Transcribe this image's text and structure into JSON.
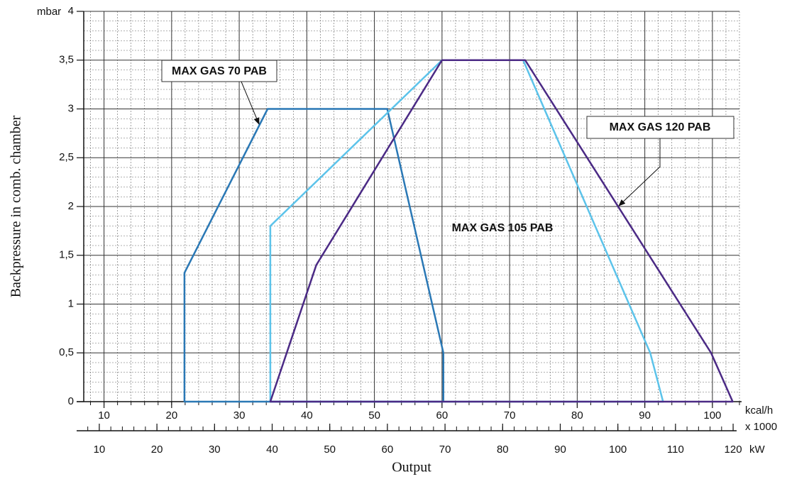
{
  "chart_data": {
    "type": "line",
    "y_label": "Backpressure in comb. chamber",
    "y_unit": "mbar",
    "x_label": "Output",
    "x_unit": "kcal/h",
    "x_unit_note": "x 1000",
    "x2_unit": "kW",
    "xlim": [
      7,
      104
    ],
    "xticks": [
      10,
      20,
      30,
      40,
      50,
      60,
      70,
      80,
      90,
      100
    ],
    "x2lim": [
      7.3,
      121.1
    ],
    "x2ticks": [
      10,
      20,
      30,
      40,
      50,
      60,
      70,
      80,
      90,
      100,
      110,
      120
    ],
    "ylim": [
      0,
      4
    ],
    "yticks": [
      0,
      {
        "value": 0.5,
        "label": "0,5"
      },
      1,
      {
        "value": 1.5,
        "label": "1,5"
      },
      2,
      {
        "value": 2.5,
        "label": "2,5"
      },
      3,
      {
        "value": 3.5,
        "label": "3,5"
      },
      4
    ],
    "grid": true,
    "minor_grid": {
      "x_step": 2,
      "y_step": 0.1,
      "x2_step": 2
    },
    "series": [
      {
        "name": "MAX GAS 70 PAB",
        "color": "#2a78b5",
        "x": [
          21.9,
          21.9,
          34.2,
          51.9,
          60.2,
          60.2
        ],
        "values": [
          0,
          1.32,
          3,
          3,
          0.5,
          0
        ]
      },
      {
        "name": "MAX GAS 105 PAB",
        "color": "#5cc3ea",
        "x": [
          34.6,
          34.6,
          60,
          72,
          90.8,
          92.7
        ],
        "values": [
          0,
          1.8,
          3.5,
          3.5,
          0.5,
          0
        ]
      },
      {
        "name": "MAX GAS 120 PAB",
        "color": "#4b2a85",
        "x": [
          34.6,
          41.4,
          60,
          72.3,
          99.8,
          103
        ],
        "values": [
          0,
          1.4,
          3.5,
          3.5,
          0.5,
          0
        ]
      }
    ]
  }
}
